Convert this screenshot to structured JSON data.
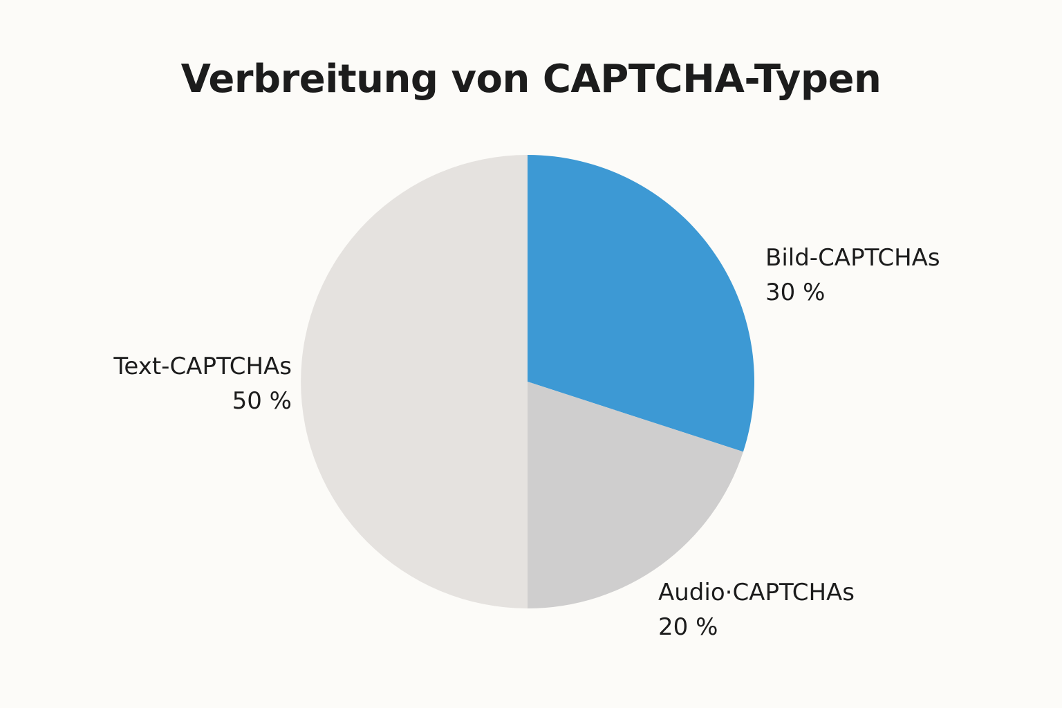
{
  "chart_data": {
    "type": "pie",
    "title": "Verbreitung von CAPTCHA-Typen",
    "slices": [
      {
        "label": "Bild-CAPTCHAs",
        "value": 30,
        "value_label": "30 %",
        "color": "#3d99d4"
      },
      {
        "label": "Audio·CAPTCHAs",
        "value": 20,
        "value_label": "20 %",
        "color": "#cfcece"
      },
      {
        "label": "Text-CAPTCHAs",
        "value": 50,
        "value_label": "50 %",
        "color": "#e5e2df"
      }
    ],
    "start_angle": "12 o'clock",
    "direction": "clockwise",
    "legend": "none"
  },
  "colors": {
    "background": "#fcfbf8",
    "text": "#1c1c1c"
  }
}
